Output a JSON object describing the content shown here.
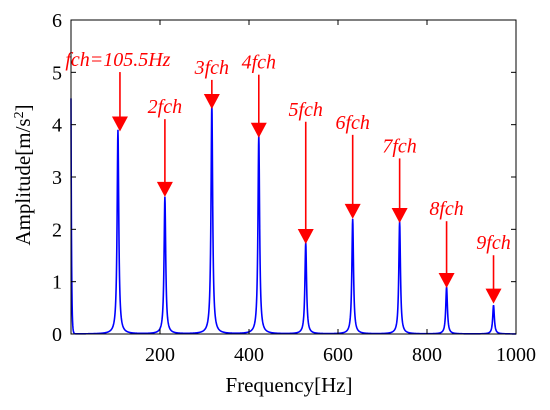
{
  "chart_data": {
    "type": "line",
    "xlabel": "Frequency[Hz]",
    "ylabel_main": "Amplitude[m/s",
    "ylabel_sup": "2",
    "ylabel_end": "]",
    "xlim": [
      0,
      1000
    ],
    "ylim": [
      0,
      6
    ],
    "xticks": [
      200,
      400,
      600,
      800,
      1000
    ],
    "yticks": [
      0,
      1,
      2,
      3,
      4,
      5,
      6
    ],
    "grid": false,
    "line_color": "#0000ff",
    "annotation_color": "#ff0000",
    "start_value": 4.5,
    "peaks": [
      {
        "x": 105.5,
        "y": 3.9,
        "label": "fch=105.5Hz",
        "label_y": 5.12,
        "arrow_y": 3.87
      },
      {
        "x": 211,
        "y": 2.62,
        "label": "2fch",
        "label_y": 4.22,
        "arrow_y": 2.62
      },
      {
        "x": 316.5,
        "y": 4.42,
        "label": "3fch",
        "label_y": 4.97,
        "arrow_y": 4.3
      },
      {
        "x": 422,
        "y": 3.8,
        "label": "4fch",
        "label_y": 5.07,
        "arrow_y": 3.75
      },
      {
        "x": 527.5,
        "y": 1.75,
        "label": "5fch",
        "label_y": 4.17,
        "arrow_y": 1.72
      },
      {
        "x": 633,
        "y": 2.2,
        "label": "6fch",
        "label_y": 3.92,
        "arrow_y": 2.2
      },
      {
        "x": 738.5,
        "y": 2.15,
        "label": "7fch",
        "label_y": 3.47,
        "arrow_y": 2.12
      },
      {
        "x": 844,
        "y": 0.9,
        "label": "8fch",
        "label_y": 2.27,
        "arrow_y": 0.88
      },
      {
        "x": 949.5,
        "y": 0.55,
        "label": "9fch",
        "label_y": 1.62,
        "arrow_y": 0.58
      }
    ]
  }
}
